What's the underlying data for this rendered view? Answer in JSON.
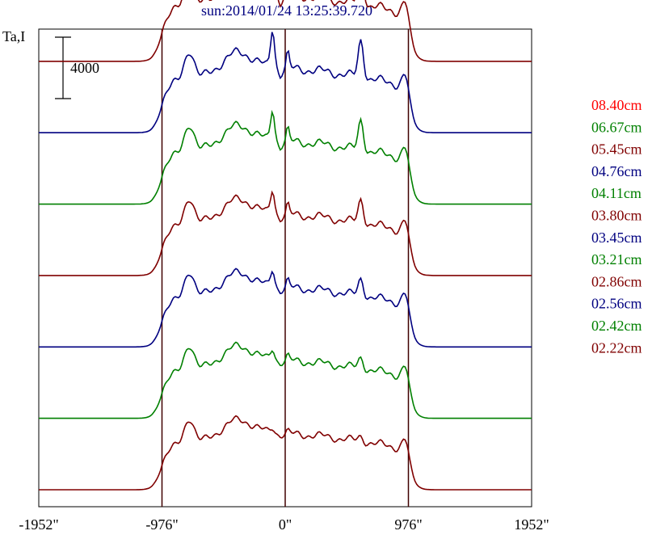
{
  "chart_data": {
    "type": "line",
    "title": "sun:2014/01/24 13:25:39.720",
    "ylabel": "Ta,I",
    "scale_bar_label": "4000",
    "scale_bar_value": 4000,
    "xlim": [
      -1952,
      1952
    ],
    "x_ticks": [
      -1952,
      -976,
      0,
      976,
      1952
    ],
    "x_tick_labels": [
      "-1952\"",
      "-976\"",
      "0\"",
      "976\"",
      "1952\""
    ],
    "vertical_lines": [
      -976,
      0,
      976
    ],
    "y_offset_step": 4650,
    "legend_placement": "right",
    "series": [
      {
        "name": "08.40cm",
        "color": "#ff0000"
      },
      {
        "name": "06.67cm",
        "color": "#008000"
      },
      {
        "name": "05.45cm",
        "color": "#800000"
      },
      {
        "name": "04.76cm",
        "color": "#000080"
      },
      {
        "name": "04.11cm",
        "color": "#008000"
      },
      {
        "name": "03.80cm",
        "color": "#800000"
      },
      {
        "name": "03.45cm",
        "color": "#000080"
      },
      {
        "name": "03.21cm",
        "color": "#008000"
      },
      {
        "name": "02.86cm",
        "color": "#800000"
      },
      {
        "name": "02.56cm",
        "color": "#000080"
      },
      {
        "name": "02.42cm",
        "color": "#008000"
      },
      {
        "name": "02.22cm",
        "color": "#800000"
      }
    ],
    "extra_trace_colors": [
      "#000080",
      "#008000",
      "#800000"
    ],
    "profile_shape": {
      "x": [
        -1952,
        -1500,
        -1150,
        -1050,
        -1000,
        -976,
        -950,
        -900,
        -840,
        -780,
        -740,
        -700,
        -620,
        -520,
        -400,
        -300,
        -220,
        -160,
        -120,
        -100,
        -80,
        -60,
        -40,
        -20,
        0,
        40,
        100,
        200,
        300,
        400,
        500,
        560,
        620,
        640,
        660,
        680,
        700,
        740,
        800,
        860,
        900,
        930,
        960,
        976,
        1000,
        1050,
        1150,
        1500,
        1952
      ],
      "baseline": [
        0,
        0,
        0,
        0,
        0,
        0,
        0,
        0,
        0,
        0,
        0,
        0,
        0,
        0,
        0,
        0,
        0,
        0,
        0,
        0,
        0,
        0,
        0,
        0,
        0,
        0,
        0,
        0,
        0,
        0,
        0,
        0,
        0,
        0,
        0,
        0,
        0,
        0,
        0,
        0,
        0,
        0,
        0,
        0,
        0,
        0,
        0,
        0,
        0
      ],
      "max_amplitude": 11000
    }
  }
}
